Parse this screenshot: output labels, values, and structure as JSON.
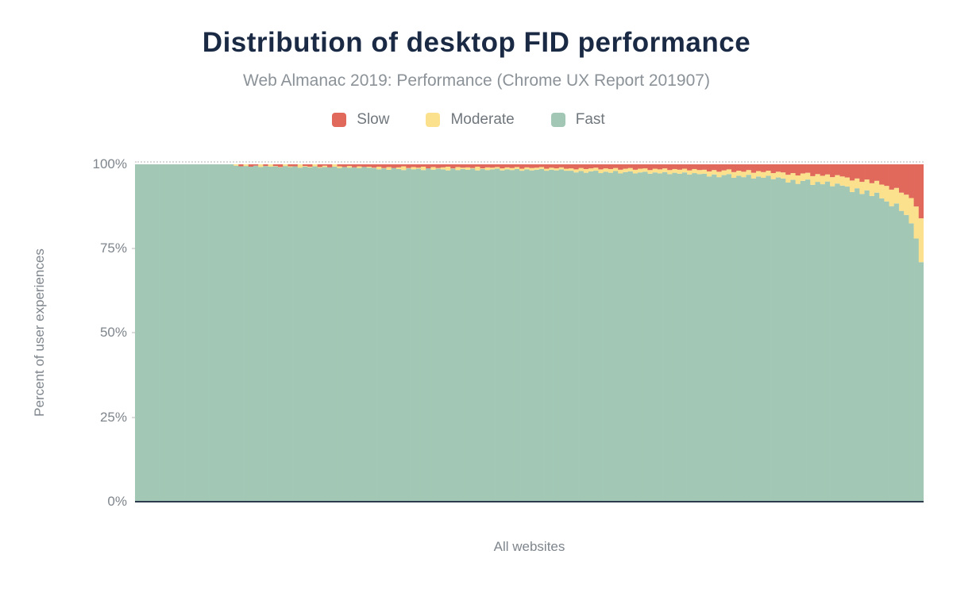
{
  "header": {
    "title": "Distribution of desktop FID performance",
    "subtitle": "Web Almanac 2019: Performance (Chrome UX Report 201907)"
  },
  "legend": {
    "items": [
      {
        "label": "Slow",
        "color": "#e0695c"
      },
      {
        "label": "Moderate",
        "color": "#fbe18e"
      },
      {
        "label": "Fast",
        "color": "#a2c8b5"
      }
    ]
  },
  "axes": {
    "y_title": "Percent of user experiences",
    "y_ticks": [
      "100%",
      "75%",
      "50%",
      "25%",
      "0%"
    ],
    "x_label": "All websites",
    "axis_line_color": "#2e3a4d",
    "gridline_color": "#d9d9d9",
    "label_color": "#7e858c"
  },
  "chart_data": {
    "type": "bar",
    "subtype": "stacked-percent-distribution",
    "title": "Distribution of desktop FID performance",
    "subtitle": "Web Almanac 2019: Performance (Chrome UX Report 201907)",
    "xlabel": "All websites",
    "ylabel": "Percent of user experiences",
    "ylim": [
      0,
      100
    ],
    "y_tick_labels": [
      "0%",
      "25%",
      "50%",
      "75%",
      "100%"
    ],
    "legend_position": "top",
    "grid": "dotted gridline at 100% only",
    "stack_total": 100,
    "columns": 160,
    "series": [
      {
        "name": "Slow",
        "color": "#e0695c",
        "values": [
          0,
          0,
          0,
          0,
          0,
          0,
          0,
          0,
          0,
          0,
          0,
          0,
          0,
          0,
          0,
          0,
          0,
          0,
          0,
          0,
          0,
          0.6,
          0,
          0.8,
          0.4,
          0,
          0.7,
          0,
          0.5,
          0.8,
          0,
          0.6,
          0.9,
          0,
          0.5,
          0.7,
          0,
          0.8,
          0.4,
          0.9,
          0,
          0.6,
          0.8,
          0.5,
          0.9,
          0.6,
          1.0,
          0.7,
          1.0,
          0.7,
          1.1,
          0.8,
          1.2,
          0.9,
          0.6,
          1.1,
          0.8,
          1.0,
          0.7,
          1.2,
          0.8,
          1.1,
          0.9,
          0.7,
          1.2,
          0.8,
          1.0,
          0.9,
          1.1,
          0.7,
          1.2,
          0.9,
          1.0,
          0.8,
          1.2,
          0.9,
          1.1,
          0.8,
          1.3,
          0.9,
          1.1,
          1.0,
          0.8,
          1.3,
          1.0,
          1.2,
          0.9,
          1.3,
          1.2,
          1.5,
          1.1,
          1.4,
          1.2,
          1.0,
          1.5,
          1.2,
          1.4,
          1.1,
          1.6,
          1.3,
          1.1,
          1.6,
          1.3,
          1.2,
          1.7,
          1.3,
          1.5,
          1.2,
          1.7,
          1.4,
          1.6,
          1.3,
          1.8,
          1.4,
          1.7,
          1.6,
          2.1,
          1.7,
          2.2,
          1.8,
          1.5,
          2.3,
          1.9,
          2.2,
          1.7,
          2.5,
          2.0,
          2.3,
          1.9,
          2.6,
          2.2,
          2.4,
          3.1,
          2.6,
          3.3,
          2.7,
          2.5,
          3.5,
          2.9,
          3.4,
          3.0,
          3.8,
          3.2,
          3.6,
          3.9,
          4.8,
          4.2,
          5.2,
          4.5,
          5.6,
          4.9,
          6.0,
          6.4,
          7.5,
          7.0,
          8.4,
          9.0,
          10.0,
          12.5,
          16.0
        ]
      },
      {
        "name": "Moderate",
        "color": "#fbe18e",
        "remainder": true
      },
      {
        "name": "Fast",
        "color": "#a2c8b5",
        "values": [
          100,
          100,
          100,
          100,
          100,
          100,
          100,
          100,
          100,
          100,
          100,
          100,
          100,
          100,
          100,
          100,
          100,
          100,
          100,
          100,
          99.6,
          99.4,
          99.5,
          99.3,
          99.6,
          99.2,
          99.5,
          99.3,
          99.4,
          99.1,
          99.5,
          99.2,
          99.4,
          99.0,
          99.3,
          99.1,
          99.4,
          99.0,
          99.2,
          99.1,
          99.3,
          98.9,
          99.2,
          99.0,
          99.1,
          98.9,
          99.2,
          99.0,
          98.9,
          98.5,
          98.8,
          98.4,
          98.9,
          98.6,
          98.3,
          98.8,
          98.5,
          98.7,
          98.3,
          98.8,
          98.4,
          98.7,
          98.5,
          98.2,
          98.7,
          98.3,
          98.6,
          98.4,
          98.7,
          98.2,
          98.6,
          98.3,
          98.5,
          98.7,
          98.2,
          98.5,
          98.3,
          98.6,
          98.1,
          98.5,
          98.2,
          98.4,
          98.6,
          98.1,
          98.4,
          98.2,
          98.5,
          98.1,
          98.1,
          97.6,
          98.0,
          97.5,
          97.9,
          98.1,
          97.4,
          97.8,
          97.5,
          98.0,
          97.3,
          97.7,
          97.9,
          97.3,
          97.6,
          97.8,
          97.2,
          97.6,
          97.3,
          97.7,
          97.1,
          97.5,
          97.2,
          97.6,
          97.0,
          97.4,
          97.1,
          97.2,
          96.4,
          97.0,
          96.2,
          96.8,
          97.1,
          96.0,
          96.6,
          96.2,
          96.9,
          95.8,
          96.4,
          96.0,
          96.6,
          95.6,
          96.1,
          95.8,
          94.6,
          95.4,
          94.2,
          95.1,
          95.5,
          93.9,
          94.8,
          94.1,
          94.9,
          93.5,
          94.3,
          93.7,
          93.4,
          91.8,
          92.9,
          91.2,
          92.3,
          90.6,
          91.6,
          89.9,
          89.0,
          87.6,
          88.4,
          86.2,
          85.0,
          82.5,
          78.0,
          71.0
        ]
      }
    ]
  }
}
